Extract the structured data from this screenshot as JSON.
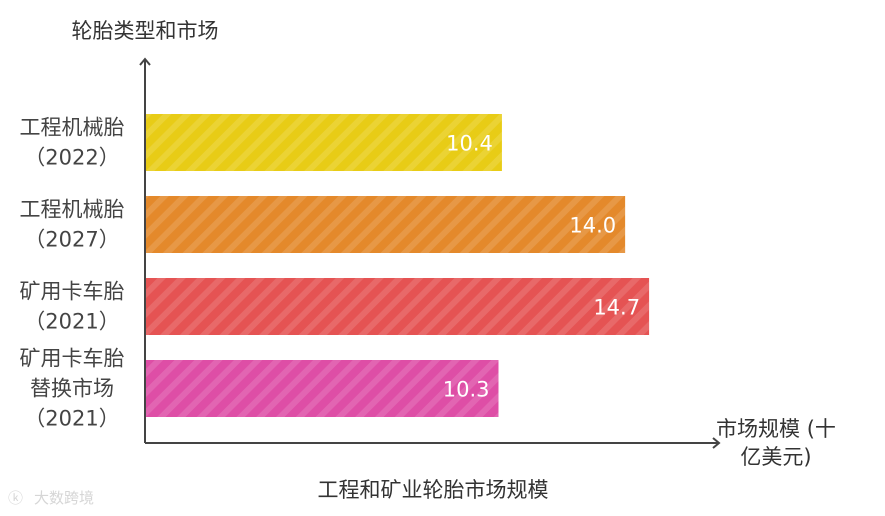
{
  "chart_data": {
    "type": "bar",
    "orientation": "horizontal",
    "title": "工程和矿业轮胎市场规模",
    "ylabel": "轮胎类型和市场",
    "xlabel": "市场规模 (十亿美元)",
    "categories": [
      [
        "工程机械胎",
        "（2022）"
      ],
      [
        "工程机械胎",
        "（2027）"
      ],
      [
        "矿用卡车胎",
        "（2021）"
      ],
      [
        "矿用卡车胎",
        "替换市场",
        "（2021）"
      ]
    ],
    "values": [
      10.4,
      14.0,
      14.7,
      10.3
    ],
    "value_labels": [
      "10.4",
      "14.0",
      "14.7",
      "10.3"
    ],
    "colors": [
      "#e8cc16",
      "#e4892b",
      "#e55353",
      "#de4ea6"
    ],
    "xlim": [
      0,
      16.1
    ],
    "grid": false,
    "legend": "none"
  },
  "watermark": "大数跨境",
  "colors": {
    "axis": "#444444"
  }
}
